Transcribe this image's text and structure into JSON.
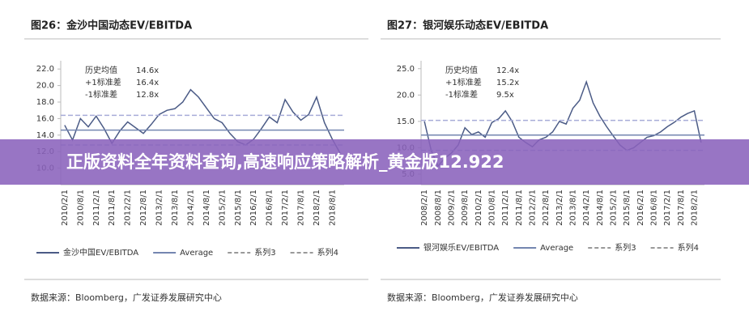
{
  "chart_data": [
    {
      "type": "line",
      "title": "图26：金沙中国动态EV/EBITDA",
      "categories": [
        "2010/2/1",
        null,
        "2010/8/1",
        null,
        "2011/2/1",
        null,
        "2011/8/1",
        null,
        "2012/2/1",
        null,
        "2012/8/1",
        null,
        "2013/2/1",
        null,
        "2013/8/1",
        null,
        "2014/2/1",
        null,
        "2014/8/1",
        null,
        "2015/2/1",
        null,
        "2015/8/1",
        null,
        "2016/2/1",
        null,
        "2016/8/1",
        null,
        "2017/2/1",
        null,
        "2017/8/1",
        null,
        "2018/2/1",
        null,
        "2018/8/1",
        null
      ],
      "series": [
        {
          "name": "金沙中国EV/EBITDA",
          "color": "#4b5b86",
          "values": [
            15.2,
            13.4,
            16.0,
            15.0,
            16.3,
            14.8,
            13.0,
            14.5,
            15.6,
            14.9,
            14.2,
            15.3,
            16.5,
            17.0,
            17.2,
            18.0,
            19.5,
            18.6,
            17.3,
            16.0,
            15.5,
            14.2,
            13.2,
            12.8,
            13.5,
            14.8,
            16.2,
            15.5,
            18.3,
            16.8,
            15.8,
            16.5,
            18.6,
            15.5,
            13.5,
            11.8
          ]
        },
        {
          "name": "Average",
          "color": "#7486b0",
          "level": 14.6,
          "dash": false
        },
        {
          "name": "系列3",
          "color": "#a7acd8",
          "level": 16.4,
          "dash": true
        },
        {
          "name": "系列4",
          "color": "#a7acd8",
          "level": 12.8,
          "dash": true
        }
      ],
      "annotations": [
        [
          "历史均值",
          "14.6x"
        ],
        [
          "+1标准差",
          "16.4x"
        ],
        [
          "-1标准差",
          "12.8x"
        ]
      ],
      "ylim": [
        8,
        23
      ],
      "yticks": [
        {
          "value": 10,
          "label": "10.0"
        },
        {
          "value": 12,
          "label": "12.0"
        },
        {
          "value": 14,
          "label": "14.0"
        },
        {
          "value": 16,
          "label": "16.0"
        },
        {
          "value": 18,
          "label": "18.0"
        },
        {
          "value": 20,
          "label": "20.0"
        },
        {
          "value": 22,
          "label": "22.0"
        }
      ],
      "source": "数据来源：Bloomberg，广发证券发展研究中心"
    },
    {
      "type": "line",
      "title": "图27：银河娱乐动态EV/EBITDA",
      "categories": [
        "2008/2/1",
        null,
        "2008/8/1",
        null,
        "2009/2/1",
        null,
        "2009/8/1",
        null,
        "2010/2/1",
        null,
        "2010/8/1",
        null,
        "2011/2/1",
        null,
        "2011/8/1",
        null,
        "2012/2/1",
        null,
        "2012/8/1",
        null,
        "2013/2/1",
        null,
        "2013/8/1",
        null,
        "2014/2/1",
        null,
        "2014/8/1",
        null,
        "2015/2/1",
        null,
        "2015/8/1",
        null,
        "2016/2/1",
        null,
        "2016/8/1",
        null,
        "2017/2/1",
        null,
        "2017/8/1",
        null,
        "2018/2/1",
        null
      ],
      "series": [
        {
          "name": "银河娱乐EV/EBITDA",
          "color": "#4b5b86",
          "values": [
            15.0,
            9.5,
            6.5,
            8.0,
            9.0,
            10.5,
            13.8,
            12.5,
            13.0,
            12.0,
            14.8,
            15.5,
            17.0,
            15.0,
            12.0,
            11.0,
            10.2,
            11.5,
            12.0,
            13.0,
            15.0,
            14.5,
            17.5,
            19.0,
            22.5,
            18.5,
            16.0,
            14.0,
            12.2,
            10.5,
            9.5,
            10.0,
            11.0,
            12.0,
            12.3,
            13.0,
            14.0,
            14.8,
            15.8,
            16.5,
            17.0,
            11.0
          ]
        },
        {
          "name": "Average",
          "color": "#7486b0",
          "level": 12.4,
          "dash": false
        },
        {
          "name": "系列3",
          "color": "#a7acd8",
          "level": 15.2,
          "dash": true
        },
        {
          "name": "系列4",
          "color": "#a7acd8",
          "level": 9.5,
          "dash": true
        }
      ],
      "annotations": [
        [
          "历史均值",
          "12.4x"
        ],
        [
          "+1标准差",
          "15.2x"
        ],
        [
          "-1标准差",
          "9.5x"
        ]
      ],
      "ylim": [
        3,
        26.5
      ],
      "yticks": [
        {
          "value": 5,
          "label": "5.0"
        },
        {
          "value": 10,
          "label": "10.0"
        },
        {
          "value": 15,
          "label": "15.0"
        },
        {
          "value": 20,
          "label": "20.0"
        },
        {
          "value": 25,
          "label": "25.0"
        }
      ],
      "source": "数据来源：Bloomberg，广发证券发展研究中心"
    }
  ],
  "banner": {
    "text": "正版资料全年资料查询,高速响应策略解析_黄金版12.922"
  }
}
